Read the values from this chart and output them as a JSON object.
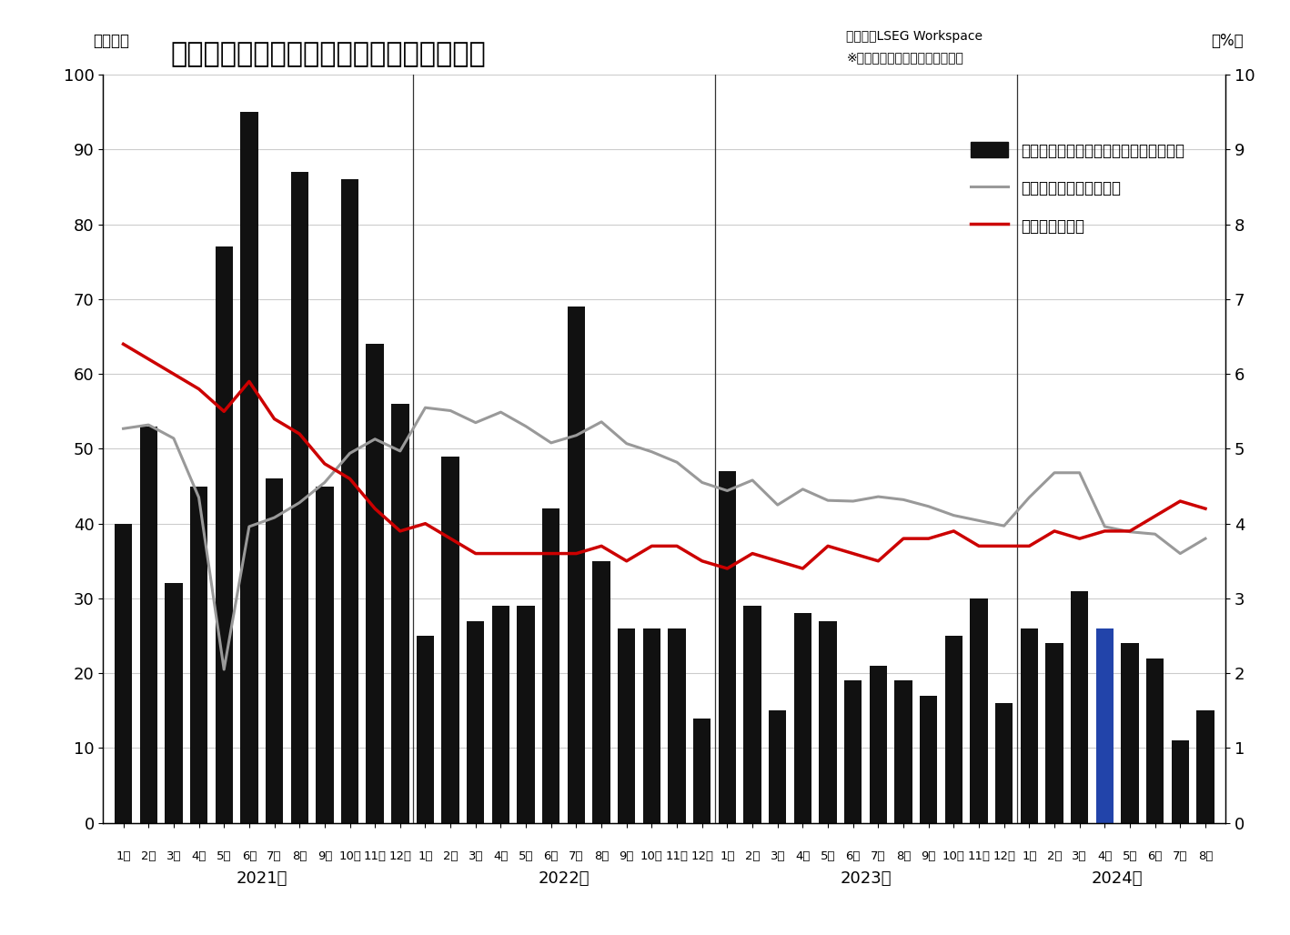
{
  "title": "米国の就業者数の増減と失業率などの推移",
  "ylabel_left": "（万人）",
  "ylabel_right": "（%）",
  "source_line1": "データ：LSEG Workspace",
  "source_line2": "※平均時給の増減率は前年同月比",
  "ylim_left": [
    0,
    100
  ],
  "ylim_right": [
    0,
    10
  ],
  "yticks_left": [
    0,
    10,
    20,
    30,
    40,
    50,
    60,
    70,
    80,
    90,
    100
  ],
  "yticks_right": [
    0,
    1,
    2,
    3,
    4,
    5,
    6,
    7,
    8,
    9,
    10
  ],
  "legend_bar": "非農業部門就業者数前月比増減（左軸）",
  "legend_wage": "平均時給増減率（右軸）",
  "legend_unemp": "失業率（右軸）",
  "years": [
    "2021年",
    "2022年",
    "2023年",
    "2024年"
  ],
  "months": [
    "1月",
    "2月",
    "3月",
    "4月",
    "5月",
    "6月",
    "7月",
    "8月",
    "9月",
    "10月",
    "11月",
    "12月",
    "1月",
    "2月",
    "3月",
    "4月",
    "5月",
    "6月",
    "7月",
    "8月",
    "9月",
    "10月",
    "11月",
    "12月",
    "1月",
    "2月",
    "3月",
    "4月",
    "5月",
    "6月",
    "7月",
    "8月",
    "9月",
    "10月",
    "11月",
    "12月",
    "1月",
    "2月",
    "3月",
    "4月",
    "5月",
    "6月",
    "7月",
    "8月"
  ],
  "bar_values": [
    40,
    53,
    32,
    45,
    77,
    95,
    46,
    87,
    45,
    86,
    64,
    56,
    25,
    49,
    27,
    29,
    29,
    42,
    69,
    35,
    26,
    26,
    26,
    14,
    47,
    29,
    15,
    28,
    27,
    19,
    21,
    19,
    17,
    25,
    30,
    16,
    26,
    24,
    31,
    26,
    24,
    22,
    11,
    15
  ],
  "special_bar_index": 39,
  "special_bar_color": "#2244aa",
  "avg_wage": [
    5.27,
    5.32,
    5.14,
    4.35,
    2.05,
    3.96,
    4.08,
    4.28,
    4.55,
    4.94,
    5.13,
    4.97,
    5.55,
    5.51,
    5.35,
    5.49,
    5.3,
    5.08,
    5.18,
    5.36,
    5.07,
    4.96,
    4.82,
    4.55,
    4.44,
    4.58,
    4.25,
    4.46,
    4.31,
    4.3,
    4.36,
    4.32,
    4.23,
    4.11,
    4.04,
    3.97,
    4.35,
    4.68,
    4.68,
    3.96,
    3.89,
    3.86,
    3.6,
    3.8
  ],
  "unemployment": [
    6.4,
    6.2,
    6.0,
    5.8,
    5.5,
    5.9,
    5.4,
    5.2,
    4.8,
    4.6,
    4.2,
    3.9,
    4.0,
    3.8,
    3.6,
    3.6,
    3.6,
    3.6,
    3.6,
    3.7,
    3.5,
    3.7,
    3.7,
    3.5,
    3.4,
    3.6,
    3.5,
    3.4,
    3.7,
    3.6,
    3.5,
    3.8,
    3.8,
    3.9,
    3.7,
    3.7,
    3.7,
    3.9,
    3.8,
    3.9,
    3.9,
    4.1,
    4.3,
    4.2
  ],
  "background_color": "#ffffff",
  "bar_color": "#111111",
  "line_wage_color": "#999999",
  "line_unemp_color": "#cc0000",
  "grid_color": "#cccccc",
  "year_line_color": "#333333"
}
